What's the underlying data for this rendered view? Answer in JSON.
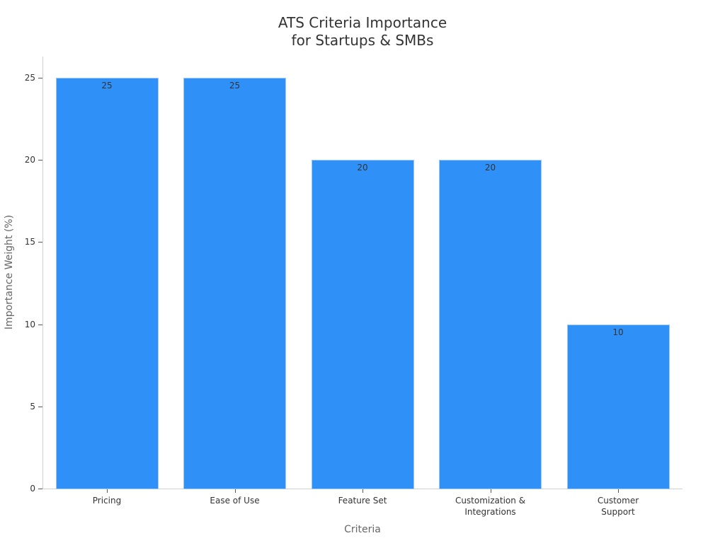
{
  "chart_data": {
    "type": "bar",
    "title": "ATS Criteria Importance for Startups & SMBs",
    "title_lines": [
      "ATS Criteria Importance",
      "for Startups & SMBs"
    ],
    "xlabel": "Criteria",
    "ylabel": "Importance Weight (%)",
    "categories": [
      "Pricing",
      "Ease of Use",
      "Feature Set",
      "Customization & Integrations",
      "Customer Support"
    ],
    "category_lines": [
      [
        "Pricing"
      ],
      [
        "Ease of Use"
      ],
      [
        "Feature Set"
      ],
      [
        "Customization &",
        "Integrations"
      ],
      [
        "Customer",
        "Support"
      ]
    ],
    "values": [
      25,
      25,
      20,
      20,
      10
    ],
    "data_labels": [
      "25",
      "25",
      "20",
      "20",
      "10"
    ],
    "ylim": [
      0,
      26.3
    ],
    "yticks": [
      0,
      5,
      10,
      15,
      20,
      25
    ],
    "grid": false,
    "legend": null,
    "bar_color": "#2f91f7"
  }
}
